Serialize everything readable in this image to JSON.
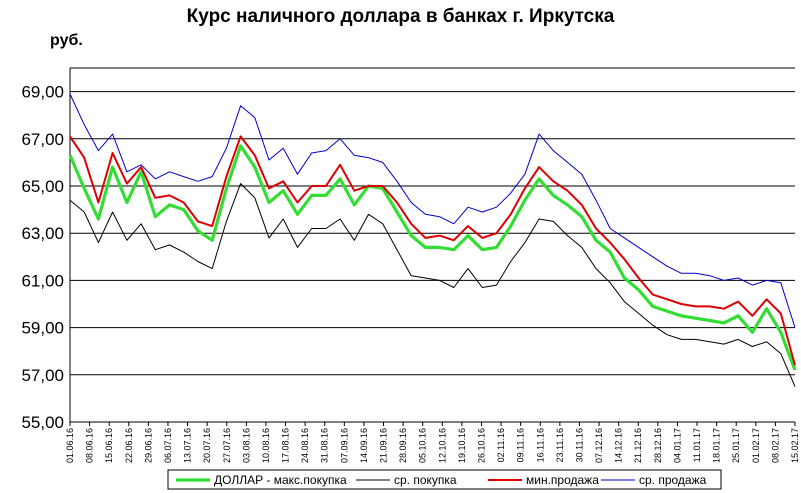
{
  "chart_data": {
    "type": "line",
    "title": "Курс наличного доллара в банках г. Иркутска",
    "ylabel": "руб.",
    "ylim": [
      55,
      70
    ],
    "yticks": [
      "55,00",
      "57,00",
      "59,00",
      "61,00",
      "63,00",
      "65,00",
      "67,00",
      "69,00"
    ],
    "ytick_values": [
      55,
      57,
      59,
      61,
      63,
      65,
      67,
      69
    ],
    "grid": "horizontal",
    "legend_position": "bottom",
    "x_tick_labels": [
      "01.06.16",
      "08.06.16",
      "15.06.16",
      "22.06.16",
      "29.06.16",
      "06.07.16",
      "13.07.16",
      "20.07.16",
      "27.07.16",
      "03.08.16",
      "10.08.16",
      "17.08.16",
      "24.08.16",
      "31.08.16",
      "07.09.16",
      "14.09.16",
      "21.09.16",
      "28.09.16",
      "05.10.16",
      "12.10.16",
      "19.10.16",
      "26.10.16",
      "02.11.16",
      "09.11.16",
      "16.11.16",
      "23.11.16",
      "30.11.16",
      "07.12.16",
      "14.12.16",
      "21.12.16",
      "28.12.16",
      "04.01.17",
      "11.01.17",
      "18.01.17",
      "25.01.17",
      "01.02.17",
      "08.02.17",
      "15.02.17"
    ],
    "series": [
      {
        "name": "ДОЛЛАР  - макс.покупка",
        "color": "#33dd33",
        "values": [
          66.3,
          64.9,
          63.6,
          65.8,
          64.3,
          65.6,
          63.7,
          64.2,
          64.0,
          63.1,
          62.7,
          64.9,
          66.7,
          65.8,
          64.3,
          64.8,
          63.8,
          64.6,
          64.6,
          65.3,
          64.2,
          65.0,
          64.9,
          63.9,
          62.9,
          62.4,
          62.4,
          62.3,
          62.9,
          62.3,
          62.4,
          63.3,
          64.4,
          65.3,
          64.6,
          64.2,
          63.7,
          62.7,
          62.2,
          61.1,
          60.6,
          59.9,
          59.7,
          59.5,
          59.4,
          59.3,
          59.2,
          59.5,
          58.8,
          59.8,
          58.8,
          57.2
        ]
      },
      {
        "name": "ср. покупка",
        "color": "#000000",
        "values": [
          64.4,
          63.9,
          62.6,
          63.9,
          62.7,
          63.4,
          62.3,
          62.5,
          62.2,
          61.8,
          61.5,
          63.5,
          65.1,
          64.5,
          62.8,
          63.6,
          62.4,
          63.2,
          63.2,
          63.6,
          62.7,
          63.8,
          63.4,
          62.3,
          61.2,
          61.1,
          61.0,
          60.7,
          61.5,
          60.7,
          60.8,
          61.8,
          62.6,
          63.6,
          63.5,
          62.9,
          62.4,
          61.5,
          60.9,
          60.1,
          59.6,
          59.1,
          58.7,
          58.5,
          58.5,
          58.4,
          58.3,
          58.5,
          58.2,
          58.4,
          57.9,
          56.5
        ]
      },
      {
        "name": "мин.продажа",
        "color": "#dd0000",
        "values": [
          67.1,
          66.2,
          64.3,
          66.4,
          65.1,
          65.8,
          64.5,
          64.6,
          64.3,
          63.5,
          63.3,
          65.4,
          67.1,
          66.3,
          64.9,
          65.2,
          64.3,
          65.0,
          65.0,
          65.9,
          64.8,
          65.0,
          65.0,
          64.3,
          63.4,
          62.8,
          62.9,
          62.7,
          63.3,
          62.8,
          63.0,
          63.8,
          64.9,
          65.8,
          65.2,
          64.8,
          64.2,
          63.2,
          62.6,
          61.9,
          61.1,
          60.4,
          60.2,
          60.0,
          59.9,
          59.9,
          59.8,
          60.1,
          59.5,
          60.2,
          59.6,
          57.4
        ]
      },
      {
        "name": "ср. продажа",
        "color": "#0000cc",
        "values": [
          68.9,
          67.6,
          66.5,
          67.2,
          65.6,
          65.9,
          65.3,
          65.6,
          65.4,
          65.2,
          65.4,
          66.6,
          68.4,
          67.9,
          66.1,
          66.6,
          65.5,
          66.4,
          66.5,
          67.0,
          66.3,
          66.2,
          66.0,
          65.2,
          64.3,
          63.8,
          63.7,
          63.4,
          64.1,
          63.9,
          64.1,
          64.7,
          65.5,
          67.2,
          66.5,
          66.0,
          65.5,
          64.4,
          63.2,
          62.8,
          62.4,
          62.0,
          61.6,
          61.3,
          61.3,
          61.2,
          61.0,
          61.1,
          60.8,
          61.0,
          60.9,
          59.0
        ]
      }
    ]
  }
}
